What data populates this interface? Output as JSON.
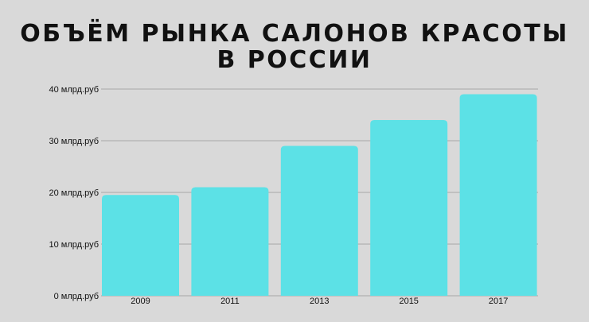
{
  "title_lines": [
    "ОБЪЁМ РЫНКА САЛОНОВ КРАСОТЫ",
    "В РОССИИ"
  ],
  "colors": {
    "background": "#d9d9d9",
    "bar": "#5ce1e6",
    "grid": "#a6a6a6",
    "text": "#111111"
  },
  "chart_data": {
    "type": "bar",
    "title": "ОБЪЁМ РЫНКА САЛОНОВ КРАСОТЫ В РОССИИ",
    "categories": [
      "2009",
      "2011",
      "2013",
      "2015",
      "2017"
    ],
    "values": [
      19.5,
      21,
      29,
      34,
      39
    ],
    "xlabel": "",
    "ylabel": "",
    "ylim": [
      0,
      40
    ],
    "yticks": [
      0,
      10,
      20,
      30,
      40
    ],
    "ytick_labels": [
      "0 млрд.руб",
      "10 млрд.руб",
      "20 млрд.руб",
      "30 млрд.руб",
      "40 млрд.руб"
    ],
    "grid": true,
    "legend": "none"
  }
}
